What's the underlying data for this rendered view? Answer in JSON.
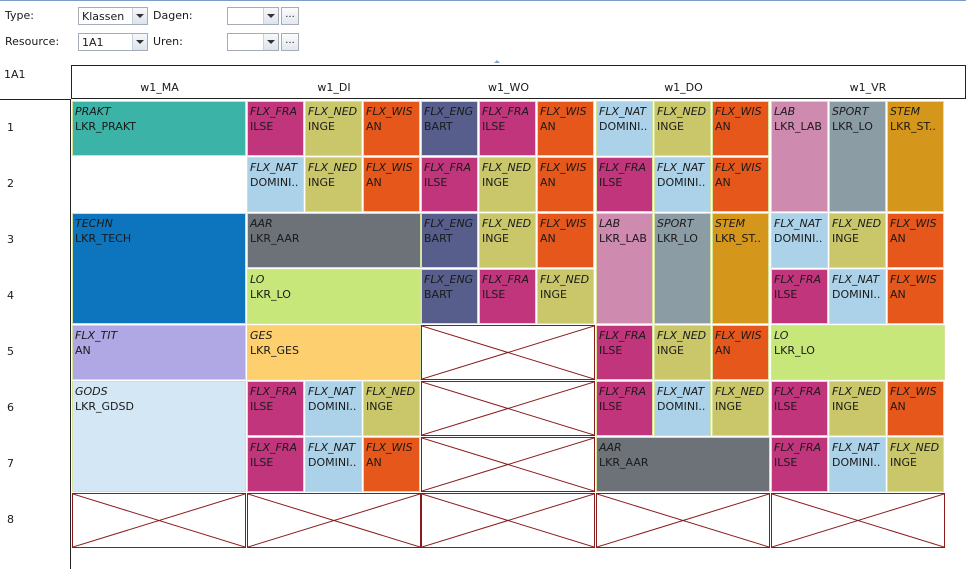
{
  "filters": {
    "type_label": "Type:",
    "type_value": "Klassen",
    "resource_label": "Resource:",
    "resource_value": "1A1",
    "dagen_label": "Dagen:",
    "dagen_value": "",
    "uren_label": "Uren:",
    "uren_value": "",
    "more_glyph": "..."
  },
  "grid": {
    "resource": "1A1",
    "days": [
      "w1_MA",
      "w1_DI",
      "w1_WO",
      "w1_DO",
      "w1_VR"
    ],
    "rows": [
      "1",
      "2",
      "3",
      "4",
      "5",
      "6",
      "7",
      "8"
    ]
  },
  "colors": {
    "teal": "#3bb3a6",
    "magenta": "#c1357d",
    "olive": "#c9c76a",
    "orange": "#e5571a",
    "slate": "#575e8c",
    "lightblue": "#abd2e9",
    "pink": "#cf8ab0",
    "gray": "#8b9ca5",
    "amber": "#d5971b",
    "blue": "#0d75bd",
    "darkgray": "#6c7277",
    "lime": "#c8e77b",
    "lavender": "#b0a8e4",
    "peach": "#fdcf6e",
    "paleblue": "#d4e7f5"
  },
  "lessons": [
    {
      "d": 0,
      "sub": 0,
      "r": 1,
      "s": 1,
      "subject": "PRAKT",
      "teacher": "LKR_PRAKT",
      "color": "#3bb3a6"
    },
    {
      "d": 0,
      "sub": 0,
      "r": 3,
      "s": 2,
      "subject": "TECHN",
      "teacher": "LKR_TECH",
      "color": "#0d75bd"
    },
    {
      "d": 0,
      "sub": 0,
      "r": 5,
      "s": 1,
      "subject": "FLX_TIT",
      "teacher": "AN",
      "color": "#b0a8e4"
    },
    {
      "d": 0,
      "sub": 0,
      "r": 6,
      "s": 2,
      "subject": "GODS",
      "teacher": "LKR_GDSD",
      "color": "#d4e7f5"
    },
    {
      "d": 1,
      "sub": 0,
      "r": 1,
      "s": 1,
      "subject": "FLX_FRA",
      "teacher": "ILSE",
      "color": "#c1357d"
    },
    {
      "d": 1,
      "sub": 1,
      "r": 1,
      "s": 1,
      "subject": "FLX_NED",
      "teacher": "INGE",
      "color": "#c9c76a"
    },
    {
      "d": 1,
      "sub": 2,
      "r": 1,
      "s": 1,
      "subject": "FLX_WIS",
      "teacher": "AN",
      "color": "#e5571a"
    },
    {
      "d": 1,
      "sub": 0,
      "r": 2,
      "s": 1,
      "subject": "FLX_NAT",
      "teacher": "DOMINI..",
      "color": "#abd2e9"
    },
    {
      "d": 1,
      "sub": 1,
      "r": 2,
      "s": 1,
      "subject": "FLX_NED",
      "teacher": "INGE",
      "color": "#c9c76a"
    },
    {
      "d": 1,
      "sub": 2,
      "r": 2,
      "s": 1,
      "subject": "FLX_WIS",
      "teacher": "AN",
      "color": "#e5571a"
    },
    {
      "d": 1,
      "sub": 0,
      "r": 3,
      "s": 1,
      "subject": "AAR",
      "teacher": "LKR_AAR",
      "color": "#6c7277",
      "full": true
    },
    {
      "d": 1,
      "sub": 0,
      "r": 4,
      "s": 1,
      "subject": "LO",
      "teacher": "LKR_LO",
      "color": "#c8e77b",
      "full": true
    },
    {
      "d": 1,
      "sub": 0,
      "r": 5,
      "s": 1,
      "subject": "GES",
      "teacher": "LKR_GES",
      "color": "#fdcf6e",
      "full": true
    },
    {
      "d": 1,
      "sub": 0,
      "r": 6,
      "s": 1,
      "subject": "FLX_FRA",
      "teacher": "ILSE",
      "color": "#c1357d"
    },
    {
      "d": 1,
      "sub": 1,
      "r": 6,
      "s": 1,
      "subject": "FLX_NAT",
      "teacher": "DOMINI..",
      "color": "#abd2e9"
    },
    {
      "d": 1,
      "sub": 2,
      "r": 6,
      "s": 1,
      "subject": "FLX_NED",
      "teacher": "INGE",
      "color": "#c9c76a"
    },
    {
      "d": 1,
      "sub": 0,
      "r": 7,
      "s": 1,
      "subject": "FLX_FRA",
      "teacher": "ILSE",
      "color": "#c1357d"
    },
    {
      "d": 1,
      "sub": 1,
      "r": 7,
      "s": 1,
      "subject": "FLX_NAT",
      "teacher": "DOMINI..",
      "color": "#abd2e9"
    },
    {
      "d": 1,
      "sub": 2,
      "r": 7,
      "s": 1,
      "subject": "FLX_WIS",
      "teacher": "AN",
      "color": "#e5571a"
    },
    {
      "d": 2,
      "sub": 0,
      "r": 1,
      "s": 1,
      "subject": "FLX_ENG",
      "teacher": "BART",
      "color": "#575e8c"
    },
    {
      "d": 2,
      "sub": 1,
      "r": 1,
      "s": 1,
      "subject": "FLX_FRA",
      "teacher": "ILSE",
      "color": "#c1357d"
    },
    {
      "d": 2,
      "sub": 2,
      "r": 1,
      "s": 1,
      "subject": "FLX_WIS",
      "teacher": "AN",
      "color": "#e5571a"
    },
    {
      "d": 2,
      "sub": 0,
      "r": 2,
      "s": 1,
      "subject": "FLX_FRA",
      "teacher": "ILSE",
      "color": "#c1357d"
    },
    {
      "d": 2,
      "sub": 1,
      "r": 2,
      "s": 1,
      "subject": "FLX_NED",
      "teacher": "INGE",
      "color": "#c9c76a"
    },
    {
      "d": 2,
      "sub": 2,
      "r": 2,
      "s": 1,
      "subject": "FLX_WIS",
      "teacher": "AN",
      "color": "#e5571a"
    },
    {
      "d": 2,
      "sub": 0,
      "r": 3,
      "s": 1,
      "subject": "FLX_ENG",
      "teacher": "BART",
      "color": "#575e8c"
    },
    {
      "d": 2,
      "sub": 1,
      "r": 3,
      "s": 1,
      "subject": "FLX_NED",
      "teacher": "INGE",
      "color": "#c9c76a"
    },
    {
      "d": 2,
      "sub": 2,
      "r": 3,
      "s": 1,
      "subject": "FLX_WIS",
      "teacher": "AN",
      "color": "#e5571a"
    },
    {
      "d": 2,
      "sub": 0,
      "r": 4,
      "s": 1,
      "subject": "FLX_ENG",
      "teacher": "BART",
      "color": "#575e8c"
    },
    {
      "d": 2,
      "sub": 1,
      "r": 4,
      "s": 1,
      "subject": "FLX_FRA",
      "teacher": "ILSE",
      "color": "#c1357d"
    },
    {
      "d": 2,
      "sub": 2,
      "r": 4,
      "s": 1,
      "subject": "FLX_NED",
      "teacher": "INGE",
      "color": "#c9c76a"
    },
    {
      "d": 3,
      "sub": 0,
      "r": 1,
      "s": 1,
      "subject": "FLX_NAT",
      "teacher": "DOMINI..",
      "color": "#abd2e9"
    },
    {
      "d": 3,
      "sub": 1,
      "r": 1,
      "s": 1,
      "subject": "FLX_NED",
      "teacher": "INGE",
      "color": "#c9c76a"
    },
    {
      "d": 3,
      "sub": 2,
      "r": 1,
      "s": 1,
      "subject": "FLX_WIS",
      "teacher": "AN",
      "color": "#e5571a"
    },
    {
      "d": 3,
      "sub": 0,
      "r": 2,
      "s": 1,
      "subject": "FLX_FRA",
      "teacher": "ILSE",
      "color": "#c1357d"
    },
    {
      "d": 3,
      "sub": 1,
      "r": 2,
      "s": 1,
      "subject": "FLX_NAT",
      "teacher": "DOMINI..",
      "color": "#abd2e9"
    },
    {
      "d": 3,
      "sub": 2,
      "r": 2,
      "s": 1,
      "subject": "FLX_WIS",
      "teacher": "AN",
      "color": "#e5571a"
    },
    {
      "d": 3,
      "sub": 0,
      "r": 3,
      "s": 2,
      "subject": "LAB",
      "teacher": "LKR_LAB",
      "color": "#cf8ab0"
    },
    {
      "d": 3,
      "sub": 1,
      "r": 3,
      "s": 2,
      "subject": "SPORT",
      "teacher": "LKR_LO",
      "color": "#8b9ca5"
    },
    {
      "d": 3,
      "sub": 2,
      "r": 3,
      "s": 2,
      "subject": "STEM",
      "teacher": "LKR_ST..",
      "color": "#d5971b"
    },
    {
      "d": 3,
      "sub": 0,
      "r": 5,
      "s": 1,
      "subject": "FLX_FRA",
      "teacher": "ILSE",
      "color": "#c1357d"
    },
    {
      "d": 3,
      "sub": 1,
      "r": 5,
      "s": 1,
      "subject": "FLX_NED",
      "teacher": "INGE",
      "color": "#c9c76a"
    },
    {
      "d": 3,
      "sub": 2,
      "r": 5,
      "s": 1,
      "subject": "FLX_WIS",
      "teacher": "AN",
      "color": "#e5571a"
    },
    {
      "d": 3,
      "sub": 0,
      "r": 6,
      "s": 1,
      "subject": "FLX_FRA",
      "teacher": "ILSE",
      "color": "#c1357d"
    },
    {
      "d": 3,
      "sub": 1,
      "r": 6,
      "s": 1,
      "subject": "FLX_NAT",
      "teacher": "DOMINI..",
      "color": "#abd2e9"
    },
    {
      "d": 3,
      "sub": 2,
      "r": 6,
      "s": 1,
      "subject": "FLX_NED",
      "teacher": "INGE",
      "color": "#c9c76a"
    },
    {
      "d": 3,
      "sub": 0,
      "r": 7,
      "s": 1,
      "subject": "AAR",
      "teacher": "LKR_AAR",
      "color": "#6c7277",
      "full": true
    },
    {
      "d": 4,
      "sub": 0,
      "r": 1,
      "s": 2,
      "subject": "LAB",
      "teacher": "LKR_LAB",
      "color": "#cf8ab0"
    },
    {
      "d": 4,
      "sub": 1,
      "r": 1,
      "s": 2,
      "subject": "SPORT",
      "teacher": "LKR_LO",
      "color": "#8b9ca5"
    },
    {
      "d": 4,
      "sub": 2,
      "r": 1,
      "s": 2,
      "subject": "STEM",
      "teacher": "LKR_ST..",
      "color": "#d5971b"
    },
    {
      "d": 4,
      "sub": 0,
      "r": 3,
      "s": 1,
      "subject": "FLX_NAT",
      "teacher": "DOMINI..",
      "color": "#abd2e9"
    },
    {
      "d": 4,
      "sub": 1,
      "r": 3,
      "s": 1,
      "subject": "FLX_NED",
      "teacher": "INGE",
      "color": "#c9c76a"
    },
    {
      "d": 4,
      "sub": 2,
      "r": 3,
      "s": 1,
      "subject": "FLX_WIS",
      "teacher": "AN",
      "color": "#e5571a"
    },
    {
      "d": 4,
      "sub": 0,
      "r": 4,
      "s": 1,
      "subject": "FLX_FRA",
      "teacher": "ILSE",
      "color": "#c1357d"
    },
    {
      "d": 4,
      "sub": 1,
      "r": 4,
      "s": 1,
      "subject": "FLX_NAT",
      "teacher": "DOMINI..",
      "color": "#abd2e9"
    },
    {
      "d": 4,
      "sub": 2,
      "r": 4,
      "s": 1,
      "subject": "FLX_WIS",
      "teacher": "AN",
      "color": "#e5571a"
    },
    {
      "d": 4,
      "sub": 0,
      "r": 5,
      "s": 1,
      "subject": "LO",
      "teacher": "LKR_LO",
      "color": "#c8e77b",
      "full": true
    },
    {
      "d": 4,
      "sub": 0,
      "r": 6,
      "s": 1,
      "subject": "FLX_FRA",
      "teacher": "ILSE",
      "color": "#c1357d"
    },
    {
      "d": 4,
      "sub": 1,
      "r": 6,
      "s": 1,
      "subject": "FLX_NED",
      "teacher": "INGE",
      "color": "#c9c76a"
    },
    {
      "d": 4,
      "sub": 2,
      "r": 6,
      "s": 1,
      "subject": "FLX_WIS",
      "teacher": "AN",
      "color": "#e5571a"
    },
    {
      "d": 4,
      "sub": 0,
      "r": 7,
      "s": 1,
      "subject": "FLX_FRA",
      "teacher": "ILSE",
      "color": "#c1357d"
    },
    {
      "d": 4,
      "sub": 1,
      "r": 7,
      "s": 1,
      "subject": "FLX_NAT",
      "teacher": "DOMINI..",
      "color": "#abd2e9"
    },
    {
      "d": 4,
      "sub": 2,
      "r": 7,
      "s": 1,
      "subject": "FLX_NED",
      "teacher": "INGE",
      "color": "#c9c76a"
    }
  ],
  "empty_cells": [
    {
      "d": 2,
      "r": 5
    },
    {
      "d": 2,
      "r": 6
    },
    {
      "d": 2,
      "r": 7
    },
    {
      "d": 0,
      "r": 8
    },
    {
      "d": 1,
      "r": 8
    },
    {
      "d": 2,
      "r": 8
    },
    {
      "d": 3,
      "r": 8
    },
    {
      "d": 4,
      "r": 8
    }
  ]
}
